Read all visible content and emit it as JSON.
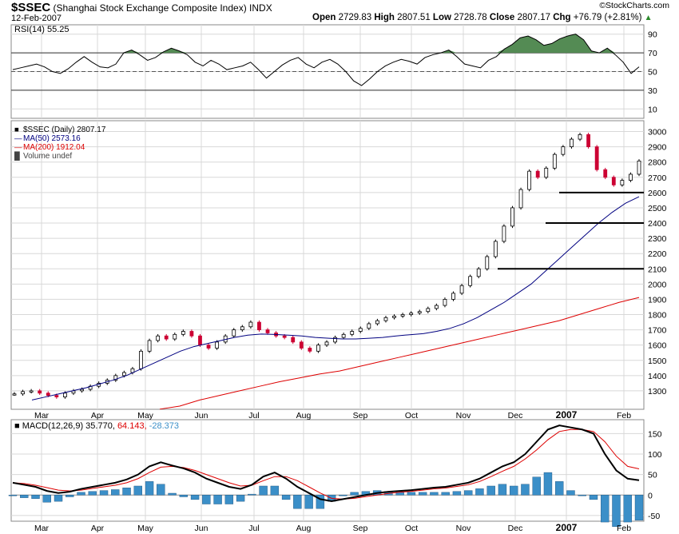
{
  "header": {
    "symbol": "$SSEC",
    "name": "(Shanghai Stock Exchange Composite Index)",
    "exchange": "INDX",
    "date": "12-Feb-2007",
    "open_label": "Open",
    "open": "2729.83",
    "high_label": "High",
    "high": "2807.51",
    "low_label": "Low",
    "low": "2728.78",
    "close_label": "Close",
    "close": "2807.17",
    "chg_label": "Chg",
    "chg": "+76.79 (+2.81%)",
    "up_arrow": "▲",
    "brand": "©StockCharts.com"
  },
  "colors": {
    "bg": "#ffffff",
    "panel_border": "#888888",
    "grid": "#d8d8d8",
    "price_up": "#000000",
    "price_down": "#cc0033",
    "ma50": "#000080",
    "ma200": "#dd0000",
    "rsi_fill": "#548b54",
    "macd": "#000000",
    "signal": "#dd0000",
    "hist": "#3b8fc8",
    "hist_border": "#1a4f7a",
    "support": "#000000"
  },
  "chart_data": [
    {
      "type": "line",
      "panel": "rsi",
      "label": "RSI(14) 55.25",
      "ylim": [
        0,
        100
      ],
      "yticks": [
        10,
        30,
        50,
        70,
        90
      ],
      "reference_lines": [
        30,
        50,
        70
      ],
      "series": [
        {
          "name": "RSI(14)",
          "values": [
            52,
            54,
            56,
            58,
            55,
            50,
            48,
            53,
            60,
            66,
            60,
            55,
            54,
            58,
            70,
            73,
            68,
            62,
            65,
            71,
            75,
            72,
            68,
            60,
            56,
            62,
            58,
            52,
            54,
            56,
            60,
            52,
            43,
            50,
            57,
            62,
            65,
            58,
            54,
            60,
            63,
            58,
            50,
            40,
            35,
            42,
            50,
            56,
            60,
            63,
            61,
            58,
            65,
            68,
            70,
            73,
            66,
            58,
            56,
            54,
            62,
            66,
            74,
            79,
            86,
            88,
            84,
            78,
            80,
            85,
            88,
            90,
            84,
            72,
            70,
            75,
            68,
            60,
            48,
            55
          ]
        }
      ],
      "current": 55.25
    },
    {
      "type": "line",
      "panel": "price",
      "legend": [
        {
          "symbol": "■",
          "label": "$SSEC (Daily) 2807.17"
        },
        {
          "symbol": "—",
          "label": "MA(50) 2573.16"
        },
        {
          "symbol": "—",
          "label": "MA(200) 1912.04"
        },
        {
          "symbol": "█",
          "label": "Volume undef"
        }
      ],
      "ylim": [
        1200,
        3050
      ],
      "yticks": [
        1300,
        1400,
        1500,
        1600,
        1700,
        1800,
        1900,
        2000,
        2100,
        2200,
        2300,
        2400,
        2500,
        2600,
        2700,
        2800,
        2900,
        3000
      ],
      "x_labels": [
        "Mar",
        "Apr",
        "May",
        "Jun",
        "Jul",
        "Aug",
        "Sep",
        "Oct",
        "Nov",
        "Dec",
        "2007",
        "Feb"
      ],
      "x_bold": "2007",
      "series": [
        {
          "name": "$SSEC",
          "values": [
            1280,
            1295,
            1300,
            1285,
            1270,
            1260,
            1285,
            1300,
            1310,
            1330,
            1350,
            1370,
            1400,
            1420,
            1445,
            1560,
            1630,
            1660,
            1640,
            1670,
            1690,
            1660,
            1600,
            1580,
            1620,
            1660,
            1700,
            1720,
            1750,
            1700,
            1680,
            1660,
            1650,
            1620,
            1580,
            1560,
            1600,
            1620,
            1650,
            1670,
            1690,
            1710,
            1740,
            1760,
            1780,
            1790,
            1800,
            1810,
            1820,
            1840,
            1860,
            1900,
            1940,
            1990,
            2050,
            2100,
            2180,
            2280,
            2380,
            2500,
            2620,
            2740,
            2700,
            2760,
            2850,
            2900,
            2950,
            2980,
            2900,
            2750,
            2700,
            2650,
            2680,
            2720,
            2807
          ]
        },
        {
          "name": "MA(50)",
          "values": [
            1240,
            1260,
            1280,
            1300,
            1320,
            1345,
            1370,
            1400,
            1440,
            1480,
            1520,
            1560,
            1590,
            1610,
            1630,
            1650,
            1665,
            1672,
            1670,
            1665,
            1660,
            1650,
            1645,
            1640,
            1640,
            1645,
            1650,
            1660,
            1668,
            1675,
            1690,
            1710,
            1740,
            1780,
            1830,
            1880,
            1940,
            2000,
            2080,
            2160,
            2240,
            2320,
            2400,
            2470,
            2530,
            2573
          ]
        },
        {
          "name": "MA(200)",
          "values": [
            1180,
            1200,
            1240,
            1270,
            1300,
            1330,
            1360,
            1385,
            1410,
            1430,
            1460,
            1490,
            1520,
            1550,
            1580,
            1610,
            1640,
            1670,
            1700,
            1730,
            1760,
            1800,
            1840,
            1880,
            1912
          ]
        }
      ],
      "support_levels": [
        2600,
        2400,
        2100
      ]
    },
    {
      "type": "line",
      "panel": "macd",
      "label": "MACD(12,26,9)",
      "macd_value": "35.770",
      "signal_value": "64.143",
      "hist_value": "-28.373",
      "ylim": [
        -60,
        180
      ],
      "yticks": [
        -50,
        0,
        50,
        100,
        150
      ],
      "x_labels": [
        "Mar",
        "Apr",
        "May",
        "Jun",
        "Jul",
        "Aug",
        "Sep",
        "Oct",
        "Nov",
        "Dec",
        "2007",
        "Feb"
      ],
      "series": [
        {
          "name": "MACD",
          "values": [
            30,
            25,
            20,
            10,
            5,
            8,
            15,
            20,
            25,
            30,
            38,
            50,
            70,
            80,
            72,
            65,
            55,
            40,
            30,
            20,
            15,
            25,
            45,
            55,
            40,
            20,
            5,
            -10,
            -15,
            -10,
            -5,
            0,
            5,
            8,
            10,
            12,
            15,
            18,
            20,
            25,
            30,
            40,
            55,
            70,
            80,
            100,
            130,
            160,
            170,
            165,
            160,
            150,
            100,
            60,
            40,
            36
          ]
        },
        {
          "name": "Signal",
          "values": [
            30,
            28,
            24,
            18,
            12,
            10,
            12,
            16,
            20,
            24,
            30,
            40,
            55,
            68,
            70,
            67,
            60,
            50,
            40,
            30,
            22,
            24,
            35,
            45,
            45,
            35,
            20,
            5,
            -8,
            -10,
            -8,
            -4,
            0,
            4,
            7,
            9,
            12,
            15,
            17,
            21,
            25,
            33,
            45,
            58,
            70,
            88,
            110,
            135,
            155,
            160,
            160,
            155,
            130,
            95,
            70,
            64
          ]
        }
      ]
    }
  ]
}
